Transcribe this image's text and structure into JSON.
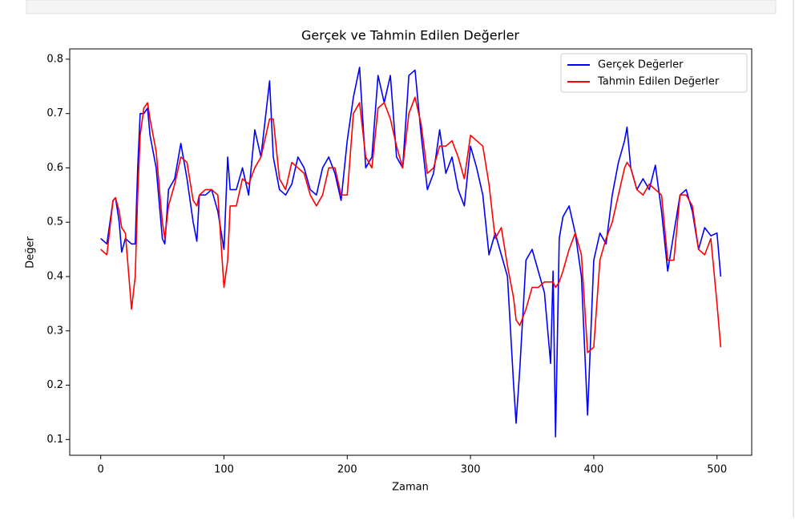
{
  "chart_data": {
    "type": "line",
    "title": "Gerçek ve Tahmin Edilen Değerler",
    "x_label": "Zaman",
    "y_label": "Değer",
    "x": [
      0,
      5,
      10,
      12,
      15,
      17,
      20,
      25,
      28,
      30,
      32,
      35,
      38,
      40,
      45,
      50,
      52,
      55,
      60,
      65,
      70,
      75,
      78,
      80,
      85,
      90,
      95,
      100,
      103,
      105,
      110,
      115,
      120,
      125,
      130,
      137,
      140,
      145,
      150,
      155,
      160,
      165,
      170,
      175,
      180,
      185,
      190,
      195,
      200,
      205,
      210,
      215,
      220,
      225,
      230,
      235,
      240,
      245,
      250,
      255,
      260,
      265,
      270,
      275,
      280,
      285,
      290,
      295,
      300,
      305,
      310,
      315,
      320,
      325,
      330,
      335,
      337,
      340,
      345,
      350,
      355,
      360,
      365,
      367,
      369,
      372,
      375,
      380,
      385,
      390,
      395,
      400,
      405,
      410,
      415,
      420,
      425,
      427,
      430,
      435,
      440,
      445,
      450,
      455,
      460,
      465,
      470,
      475,
      480,
      485,
      490,
      495,
      500,
      503
    ],
    "series": [
      {
        "name": "Gerçek Değerler",
        "color": "#0000ff",
        "values": [
          0.47,
          0.46,
          0.54,
          0.545,
          0.5,
          0.445,
          0.47,
          0.46,
          0.46,
          0.6,
          0.7,
          0.7,
          0.71,
          0.66,
          0.6,
          0.47,
          0.46,
          0.56,
          0.58,
          0.645,
          0.58,
          0.5,
          0.465,
          0.55,
          0.55,
          0.56,
          0.52,
          0.45,
          0.62,
          0.56,
          0.56,
          0.6,
          0.55,
          0.67,
          0.62,
          0.76,
          0.62,
          0.56,
          0.55,
          0.57,
          0.62,
          0.6,
          0.56,
          0.55,
          0.6,
          0.62,
          0.59,
          0.54,
          0.65,
          0.73,
          0.785,
          0.6,
          0.62,
          0.77,
          0.72,
          0.77,
          0.62,
          0.6,
          0.77,
          0.78,
          0.66,
          0.56,
          0.59,
          0.67,
          0.59,
          0.62,
          0.56,
          0.53,
          0.64,
          0.6,
          0.55,
          0.44,
          0.48,
          0.44,
          0.4,
          0.2,
          0.13,
          0.23,
          0.43,
          0.45,
          0.41,
          0.37,
          0.24,
          0.41,
          0.105,
          0.47,
          0.51,
          0.53,
          0.48,
          0.4,
          0.145,
          0.43,
          0.48,
          0.46,
          0.55,
          0.61,
          0.65,
          0.675,
          0.6,
          0.56,
          0.58,
          0.56,
          0.605,
          0.52,
          0.41,
          0.48,
          0.55,
          0.56,
          0.52,
          0.45,
          0.49,
          0.475,
          0.48,
          0.4
        ]
      },
      {
        "name": "Tahmin Edilen Değerler",
        "color": "#ff0000",
        "values": [
          0.45,
          0.44,
          0.54,
          0.545,
          0.52,
          0.49,
          0.48,
          0.34,
          0.4,
          0.55,
          0.66,
          0.71,
          0.72,
          0.69,
          0.63,
          0.5,
          0.47,
          0.53,
          0.57,
          0.62,
          0.61,
          0.54,
          0.53,
          0.55,
          0.56,
          0.56,
          0.55,
          0.38,
          0.43,
          0.53,
          0.53,
          0.58,
          0.57,
          0.6,
          0.62,
          0.69,
          0.69,
          0.58,
          0.56,
          0.61,
          0.6,
          0.59,
          0.55,
          0.53,
          0.55,
          0.6,
          0.6,
          0.55,
          0.55,
          0.7,
          0.72,
          0.62,
          0.6,
          0.71,
          0.72,
          0.69,
          0.64,
          0.6,
          0.7,
          0.73,
          0.68,
          0.59,
          0.6,
          0.64,
          0.64,
          0.65,
          0.62,
          0.58,
          0.66,
          0.65,
          0.64,
          0.57,
          0.47,
          0.49,
          0.42,
          0.36,
          0.32,
          0.31,
          0.34,
          0.38,
          0.38,
          0.39,
          0.39,
          0.39,
          0.38,
          0.39,
          0.41,
          0.45,
          0.48,
          0.44,
          0.26,
          0.27,
          0.43,
          0.47,
          0.5,
          0.55,
          0.6,
          0.61,
          0.6,
          0.56,
          0.55,
          0.57,
          0.56,
          0.55,
          0.43,
          0.43,
          0.55,
          0.55,
          0.53,
          0.45,
          0.44,
          0.47,
          0.35,
          0.27
        ]
      }
    ],
    "xlim": [
      -25.15,
      528.15
    ],
    "ylim": [
      0.071,
      0.819
    ],
    "xticks": [
      0,
      100,
      200,
      300,
      400,
      500
    ],
    "yticks": [
      0.1,
      0.2,
      0.3,
      0.4,
      0.5,
      0.6,
      0.7,
      0.8
    ],
    "grid": false,
    "legend": "upper right"
  }
}
